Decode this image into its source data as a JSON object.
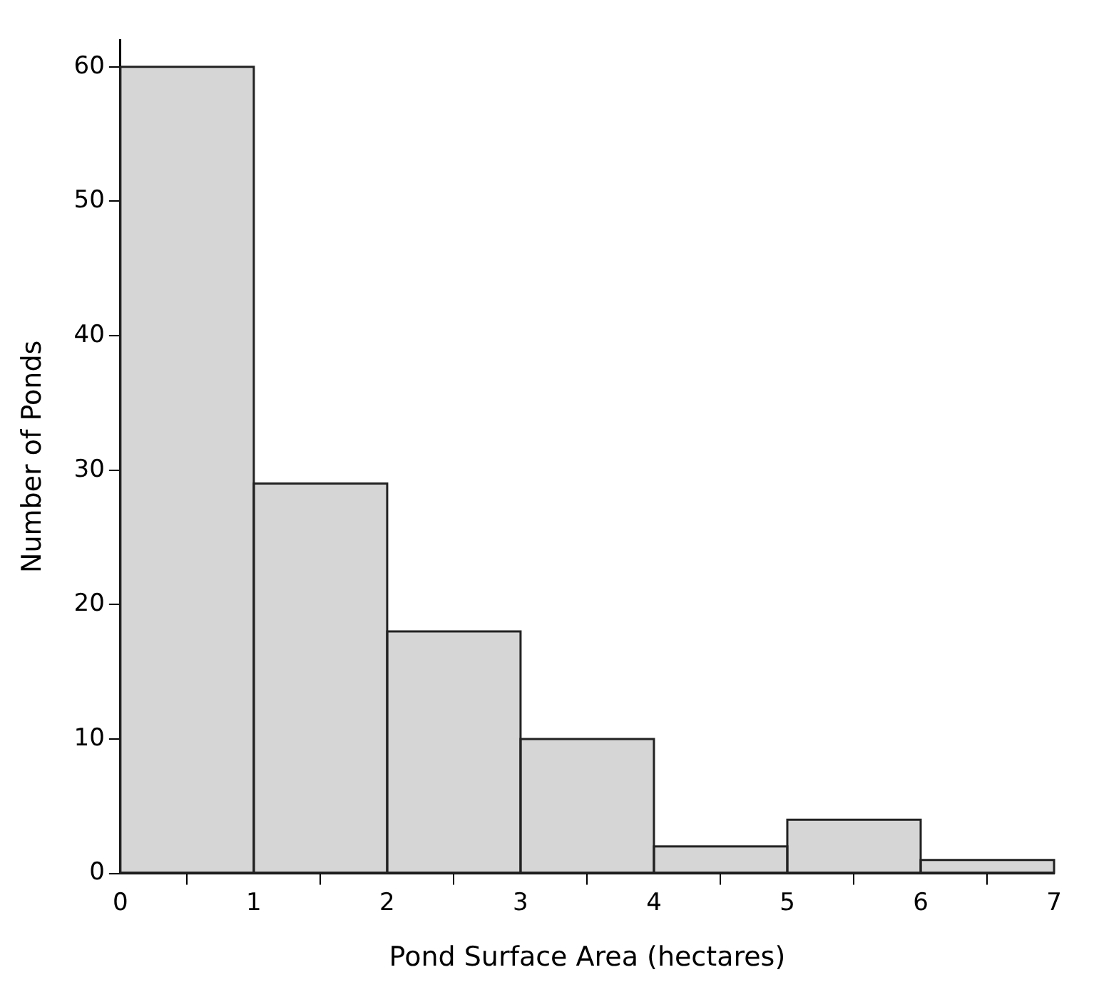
{
  "chart_data": {
    "type": "histogram",
    "xlabel": "Pond Surface Area (hectares)",
    "ylabel": "Number of Ponds",
    "bins": [
      0,
      1,
      2,
      3,
      4,
      5,
      6,
      7
    ],
    "values": [
      60,
      29,
      18,
      10,
      2,
      4,
      1
    ],
    "color": "#d6d6d6",
    "xlim": [
      0,
      7
    ],
    "xticks": [
      0,
      1,
      2,
      3,
      4,
      5,
      6,
      7
    ],
    "ylim": [
      0,
      62
    ],
    "yticks": [
      0,
      10,
      20,
      30,
      40,
      50,
      60
    ],
    "grid": false,
    "legend": false
  }
}
